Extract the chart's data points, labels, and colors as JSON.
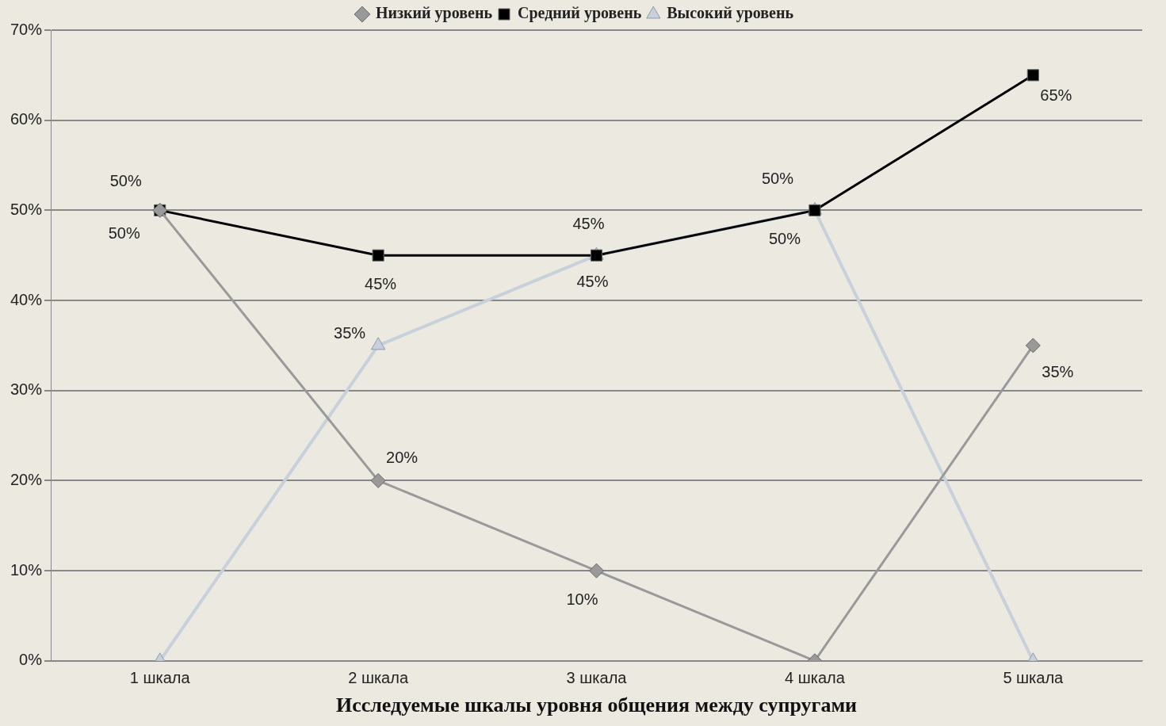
{
  "chart_data": {
    "type": "line",
    "xlabel": "Исследуемые шкалы уровня общения между супругами",
    "categories": [
      "1 шкала",
      "2 шкала",
      "3 шкала",
      "4 шкала",
      "5 шкала"
    ],
    "series": [
      {
        "name": "Низкий уровень",
        "color": "#999999",
        "marker": "diamond",
        "values": [
          50,
          20,
          10,
          0,
          35
        ],
        "value_labels": [
          "50%",
          "20%",
          "10%",
          null,
          "35%"
        ]
      },
      {
        "name": "Средний уровень",
        "color": "#000000",
        "marker": "square",
        "values": [
          50,
          45,
          45,
          50,
          65
        ],
        "value_labels": [
          "50%",
          "45%",
          "45%",
          "50%",
          "65%"
        ]
      },
      {
        "name": "Высокий уровень",
        "color": "#c8d0dc",
        "marker": "triangle",
        "values": [
          0,
          35,
          45,
          50,
          0
        ],
        "value_labels": [
          null,
          "35%",
          "45%",
          "50%",
          null
        ]
      }
    ],
    "ylim": [
      0,
      70
    ],
    "yticks": [
      {
        "value": 0,
        "label": "0%"
      },
      {
        "value": 10,
        "label": "10%"
      },
      {
        "value": 20,
        "label": "20%"
      },
      {
        "value": 30,
        "label": "30%"
      },
      {
        "value": 40,
        "label": "40%"
      },
      {
        "value": 50,
        "label": "50%"
      },
      {
        "value": 60,
        "label": "60%"
      },
      {
        "value": 70,
        "label": "70%"
      }
    ],
    "grid": "y",
    "legend": "top",
    "line_style": "solid"
  }
}
